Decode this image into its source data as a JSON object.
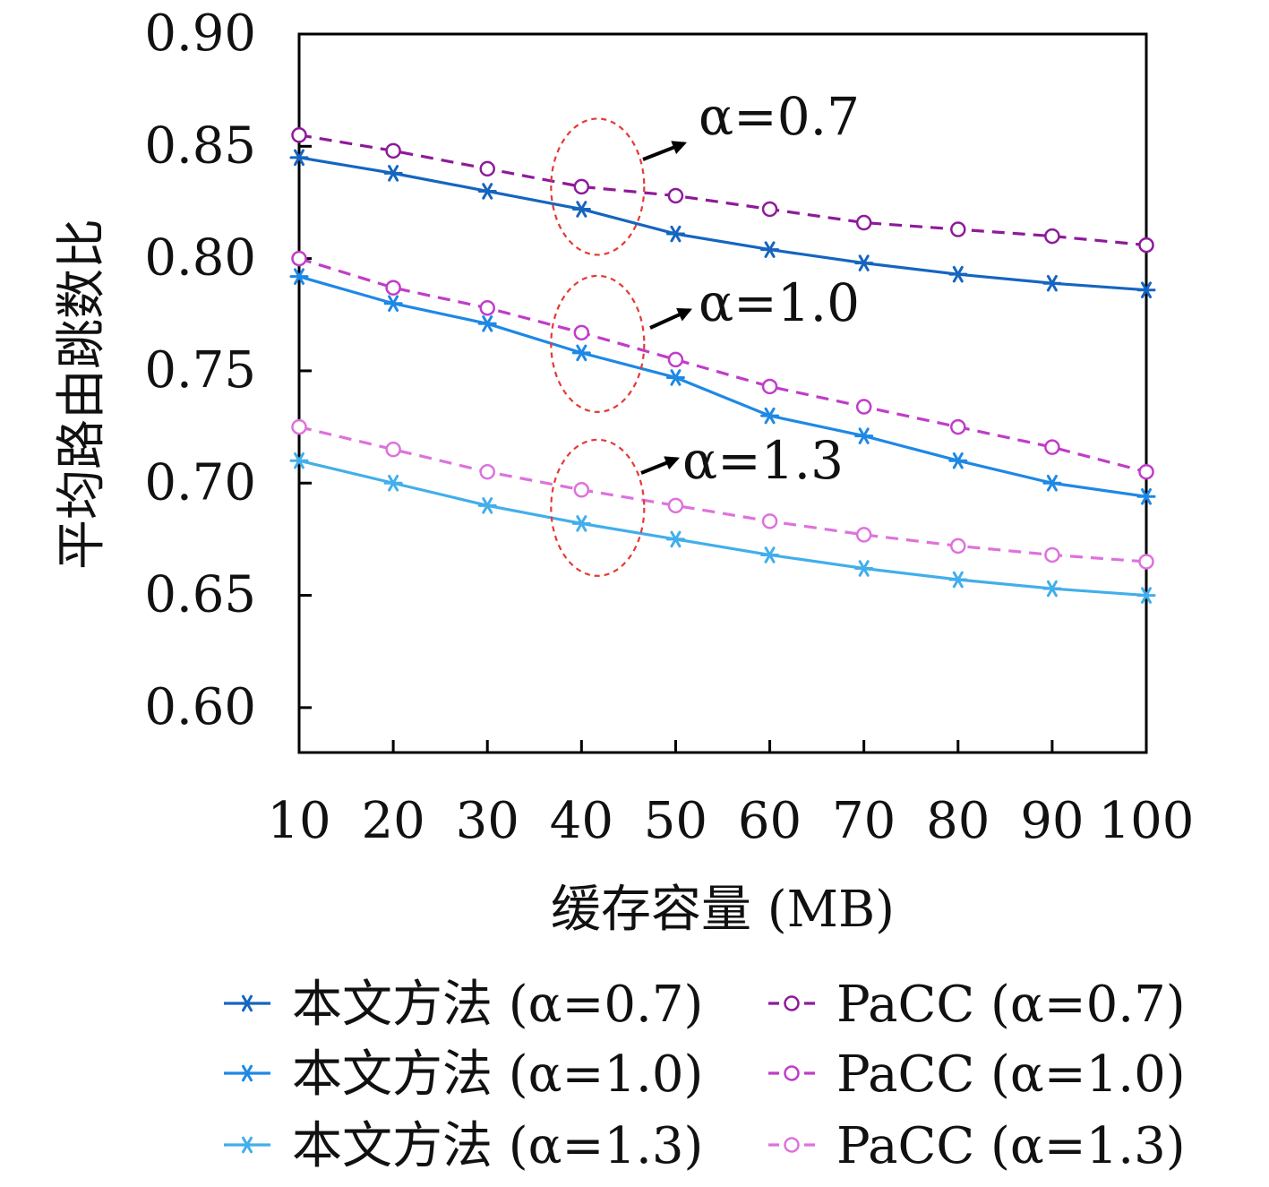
{
  "chart_data": {
    "type": "line",
    "xlabel": "缓存容量 (MB)",
    "ylabel": "平均路由跳数比",
    "x": [
      10,
      20,
      30,
      40,
      50,
      60,
      70,
      80,
      90,
      100
    ],
    "xlim": [
      10,
      100
    ],
    "ylim": [
      0.58,
      0.9
    ],
    "yticks": [
      "0.90",
      "0.85",
      "0.80",
      "0.75",
      "0.70",
      "0.65",
      "0.60"
    ],
    "xticks": [
      "10",
      "20",
      "30",
      "40",
      "50",
      "60",
      "70",
      "80",
      "90",
      "100"
    ],
    "grid": false,
    "legend_position": "bottom",
    "series": [
      {
        "name": "本文方法 (α=0.7)",
        "marker": "asterisk",
        "dash": "solid",
        "color": "#1565C0",
        "values": [
          0.845,
          0.838,
          0.83,
          0.822,
          0.811,
          0.804,
          0.798,
          0.793,
          0.789,
          0.786
        ]
      },
      {
        "name": "本文方法 (α=1.0)",
        "marker": "asterisk",
        "dash": "solid",
        "color": "#1E88E5",
        "values": [
          0.792,
          0.78,
          0.771,
          0.758,
          0.747,
          0.73,
          0.721,
          0.71,
          0.7,
          0.694
        ]
      },
      {
        "name": "本文方法 (α=1.3)",
        "marker": "asterisk",
        "dash": "solid",
        "color": "#42AEEB",
        "values": [
          0.71,
          0.7,
          0.69,
          0.682,
          0.675,
          0.668,
          0.662,
          0.657,
          0.653,
          0.65
        ]
      },
      {
        "name": "PaCC (α=0.7)",
        "marker": "circle",
        "dash": "dashed",
        "color": "#8E1A9A",
        "values": [
          0.855,
          0.848,
          0.84,
          0.832,
          0.828,
          0.822,
          0.816,
          0.813,
          0.81,
          0.806
        ]
      },
      {
        "name": "PaCC (α=1.0)",
        "marker": "circle",
        "dash": "dashed",
        "color": "#C13CC9",
        "values": [
          0.8,
          0.787,
          0.778,
          0.767,
          0.755,
          0.743,
          0.734,
          0.725,
          0.716,
          0.705
        ]
      },
      {
        "name": "PaCC (α=1.3)",
        "marker": "circle",
        "dash": "dashed",
        "color": "#DD72DD",
        "values": [
          0.725,
          0.715,
          0.705,
          0.697,
          0.69,
          0.683,
          0.677,
          0.672,
          0.668,
          0.665
        ]
      }
    ],
    "annotations": [
      {
        "text": "α=0.7",
        "x": 40,
        "y": 0.832
      },
      {
        "text": "α=1.0",
        "x": 40,
        "y": 0.762
      },
      {
        "text": "α=1.3",
        "x": 40,
        "y": 0.689
      }
    ],
    "highlight_color": "#E53935"
  }
}
